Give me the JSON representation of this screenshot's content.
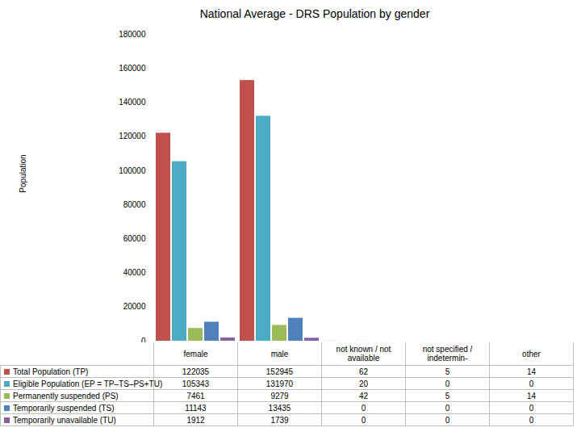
{
  "chart_data": {
    "type": "bar",
    "title": "National Average - DRS Population by gender",
    "y_label": "Population",
    "categories": [
      "female",
      "male",
      "not known / not available",
      "not specified / indetermin-",
      "other"
    ],
    "series": [
      {
        "name": "Total Population (TP)",
        "color": "#c0504d",
        "values": [
          122035,
          152945,
          62,
          5,
          14
        ]
      },
      {
        "name": "Eligible Population (EP = TP–TS–PS+TU)",
        "color": "#4bacc6",
        "values": [
          105343,
          131970,
          20,
          0,
          0
        ]
      },
      {
        "name": "Permanently suspended (PS)",
        "color": "#9bbb59",
        "values": [
          7461,
          9279,
          42,
          5,
          14
        ]
      },
      {
        "name": "Temporarily suspended (TS)",
        "color": "#4f81bd",
        "values": [
          11143,
          13435,
          0,
          0,
          0
        ]
      },
      {
        "name": "Temporarily unavailable (TU)",
        "color": "#8064a2",
        "values": [
          1912,
          1739,
          0,
          0,
          0
        ]
      }
    ],
    "ylim": [
      0,
      180000
    ],
    "yticks": [
      0,
      20000,
      40000,
      60000,
      80000,
      100000,
      120000,
      140000,
      160000,
      180000
    ],
    "grid": false
  }
}
